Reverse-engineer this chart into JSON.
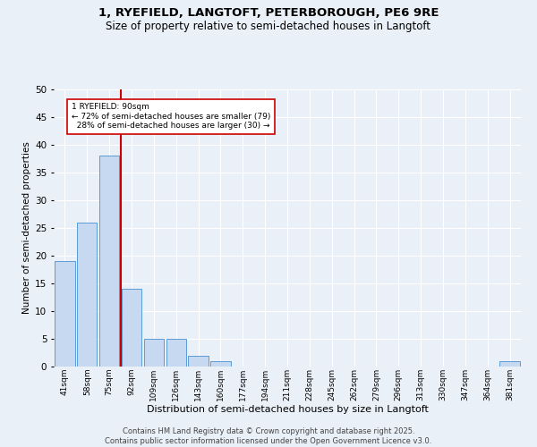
{
  "title1": "1, RYEFIELD, LANGTOFT, PETERBOROUGH, PE6 9RE",
  "title2": "Size of property relative to semi-detached houses in Langtoft",
  "xlabel": "Distribution of semi-detached houses by size in Langtoft",
  "ylabel": "Number of semi-detached properties",
  "bar_categories": [
    "41sqm",
    "58sqm",
    "75sqm",
    "92sqm",
    "109sqm",
    "126sqm",
    "143sqm",
    "160sqm",
    "177sqm",
    "194sqm",
    "211sqm",
    "228sqm",
    "245sqm",
    "262sqm",
    "279sqm",
    "296sqm",
    "313sqm",
    "330sqm",
    "347sqm",
    "364sqm",
    "381sqm"
  ],
  "bar_values": [
    19,
    26,
    38,
    14,
    5,
    5,
    2,
    1,
    0,
    0,
    0,
    0,
    0,
    0,
    0,
    0,
    0,
    0,
    0,
    0,
    1
  ],
  "bar_color": "#c6d9f0",
  "bar_edge_color": "#5b9bd5",
  "vline_color": "#cc0000",
  "annotation_box_color": "#ffffff",
  "annotation_border_color": "#cc0000",
  "smaller_pct": 72,
  "smaller_n": 79,
  "larger_pct": 28,
  "larger_n": 30,
  "ylim": [
    0,
    50
  ],
  "yticks": [
    0,
    5,
    10,
    15,
    20,
    25,
    30,
    35,
    40,
    45,
    50
  ],
  "background_color": "#eaf0f8",
  "grid_color": "#ffffff",
  "footer1": "Contains HM Land Registry data © Crown copyright and database right 2025.",
  "footer2": "Contains public sector information licensed under the Open Government Licence v3.0."
}
